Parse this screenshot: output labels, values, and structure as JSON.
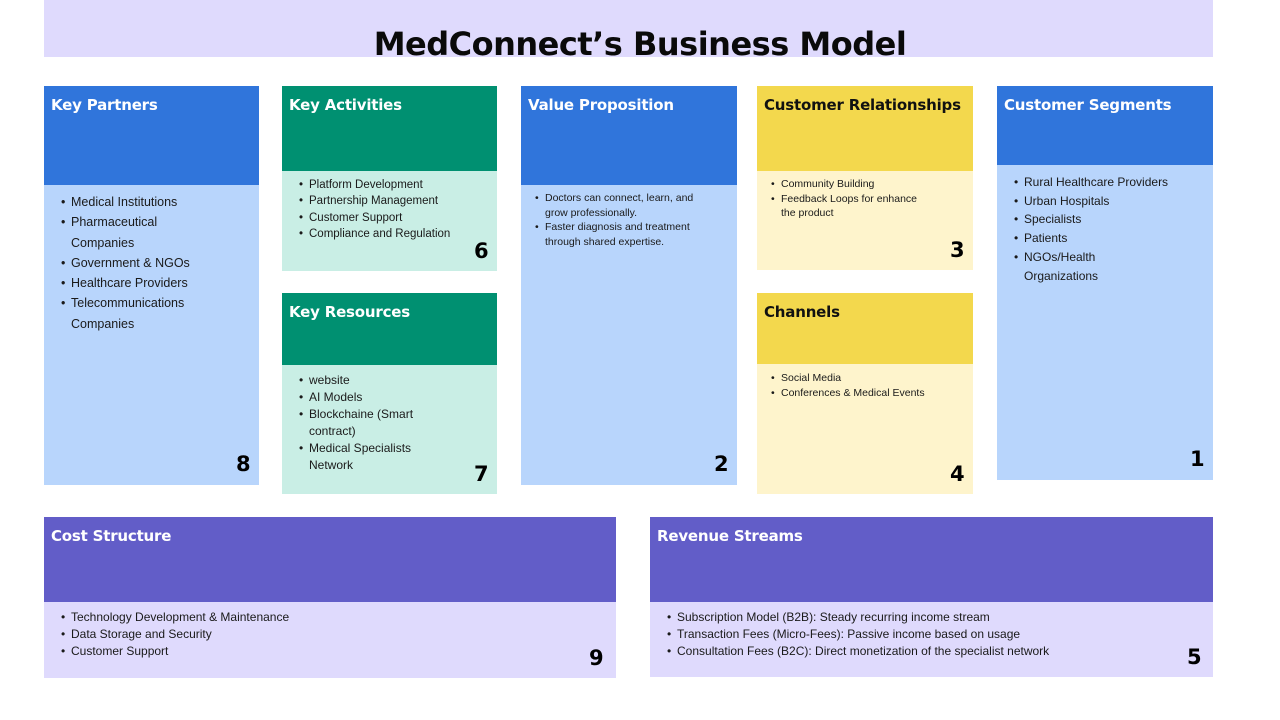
{
  "title": "MedConnect’s Business Model",
  "colors": {
    "title_band": "#dfdafd",
    "blue_header": "#3075db",
    "blue_body": "#b8d5fc",
    "green_header": "#009071",
    "green_body": "#c9eee5",
    "yellow_header": "#f3d84d",
    "yellow_body": "#fef4cc",
    "purple_header": "#625dc8",
    "purple_body": "#dfdafd"
  },
  "blocks": {
    "key_partners": {
      "title": "Key Partners",
      "number": "8",
      "items": [
        "Medical Institutions",
        "Pharmaceutical Companies",
        "Government & NGOs",
        "Healthcare Providers",
        "Telecommunications Companies"
      ]
    },
    "key_activities": {
      "title": "Key Activities",
      "number": "6",
      "items": [
        "Platform Development",
        "Partnership Management",
        "Customer Support",
        "Compliance and Regulation"
      ]
    },
    "key_resources": {
      "title": "Key Resources",
      "number": "7",
      "items": [
        "website",
        "AI Models",
        "Blockchaine (Smart contract)",
        "Medical Specialists Network"
      ]
    },
    "value_proposition": {
      "title": "Value Proposition",
      "number": "2",
      "items": [
        "Doctors can connect, learn, and grow professionally.",
        "Faster diagnosis and treatment through shared expertise."
      ]
    },
    "customer_relationships": {
      "title": "Customer Relationships",
      "number": "3",
      "items": [
        "Community Building",
        "Feedback Loops for enhance the product"
      ]
    },
    "channels": {
      "title": "Channels",
      "number": "4",
      "items": [
        "Social Media",
        "Conferences & Medical Events"
      ]
    },
    "customer_segments": {
      "title": "Customer Segments",
      "number": "1",
      "items": [
        "Rural Healthcare Providers",
        "Urban Hospitals",
        "Specialists",
        "Patients",
        "NGOs/Health Organizations"
      ]
    },
    "cost_structure": {
      "title": "Cost Structure",
      "number": "9",
      "items": [
        "Technology Development & Maintenance",
        "Data Storage and Security",
        "Customer Support"
      ]
    },
    "revenue_streams": {
      "title": "Revenue Streams",
      "number": "5",
      "items": [
        "Subscription Model (B2B): Steady recurring income stream",
        "Transaction Fees (Micro-Fees): Passive income based on usage",
        "Consultation Fees (B2C): Direct monetization of the specialist network"
      ]
    }
  }
}
